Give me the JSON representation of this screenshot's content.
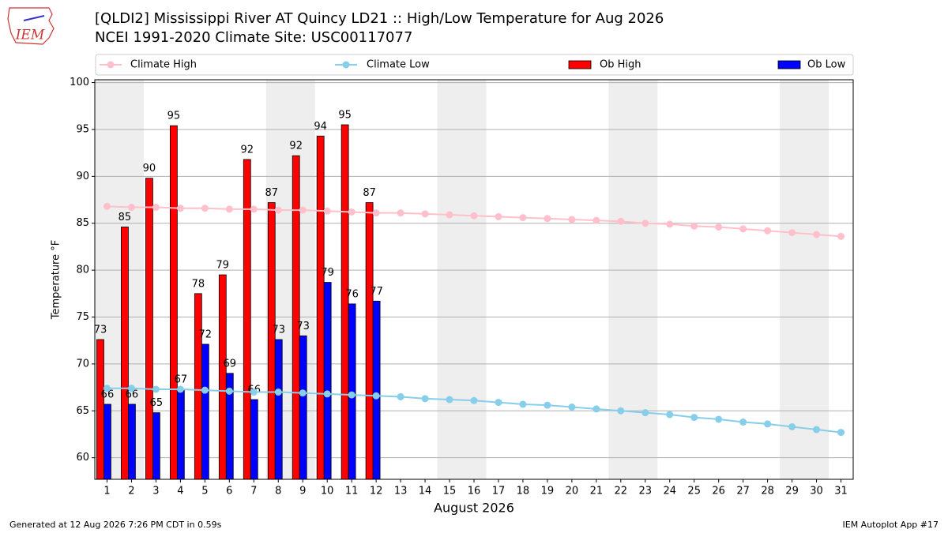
{
  "chart_data": {
    "type": "bar_line",
    "title": "[QLDI2] Mississippi River  AT Quincy LD21 :: High/Low Temperature for Aug 2026",
    "subtitle": "NCEI 1991-2020 Climate Site: USC00117077",
    "logo_text": "IEM",
    "ylabel": "Temperature °F",
    "xlabel": "August 2026",
    "footer_left": "Generated at 12 Aug 2026 7:26 PM CDT in 0.59s",
    "footer_right": "IEM Autoplot App #17",
    "x": [
      1,
      2,
      3,
      4,
      5,
      6,
      7,
      8,
      9,
      10,
      11,
      12,
      13,
      14,
      15,
      16,
      17,
      18,
      19,
      20,
      21,
      22,
      23,
      24,
      25,
      26,
      27,
      28,
      29,
      30,
      31
    ],
    "xlim": [
      0.5,
      31.5
    ],
    "xticks": [
      1,
      2,
      3,
      4,
      5,
      6,
      7,
      8,
      9,
      10,
      11,
      12,
      13,
      14,
      15,
      16,
      17,
      18,
      19,
      20,
      21,
      22,
      23,
      24,
      25,
      26,
      27,
      28,
      29,
      30,
      31
    ],
    "ylim": [
      57.7,
      100.3
    ],
    "yticks": [
      60,
      65,
      70,
      75,
      80,
      85,
      90,
      95,
      100
    ],
    "grid": true,
    "shaded_spans": [
      [
        0.5,
        2.5
      ],
      [
        7.5,
        9.5
      ],
      [
        14.5,
        16.5
      ],
      [
        21.5,
        23.5
      ],
      [
        28.5,
        30.5
      ]
    ],
    "shade_color": "#eeeeee",
    "series": [
      {
        "name": "Climate High",
        "kind": "line",
        "color": "#ffc0cb",
        "values": [
          86.8,
          86.7,
          86.7,
          86.6,
          86.6,
          86.5,
          86.5,
          86.4,
          86.4,
          86.3,
          86.2,
          86.1,
          86.1,
          86.0,
          85.9,
          85.8,
          85.7,
          85.6,
          85.5,
          85.4,
          85.3,
          85.2,
          85.0,
          84.9,
          84.7,
          84.6,
          84.4,
          84.2,
          84.0,
          83.8,
          83.6
        ]
      },
      {
        "name": "Climate Low",
        "kind": "line",
        "color": "#87ceeb",
        "values": [
          67.4,
          67.4,
          67.3,
          67.3,
          67.2,
          67.1,
          67.0,
          67.0,
          66.9,
          66.8,
          66.7,
          66.6,
          66.5,
          66.3,
          66.2,
          66.1,
          65.9,
          65.7,
          65.6,
          65.4,
          65.2,
          65.0,
          64.8,
          64.6,
          64.3,
          64.1,
          63.8,
          63.6,
          63.3,
          63.0,
          62.7
        ]
      },
      {
        "name": "Ob High",
        "kind": "bar",
        "color": "#ff0000",
        "values": [
          72.6,
          84.6,
          89.8,
          95.4,
          77.5,
          79.5,
          91.8,
          87.2,
          92.2,
          94.3,
          95.5,
          87.2,
          null,
          null,
          null,
          null,
          null,
          null,
          null,
          null,
          null,
          null,
          null,
          null,
          null,
          null,
          null,
          null,
          null,
          null,
          null
        ],
        "value_labels": [
          "73",
          "85",
          "90",
          "95",
          "78",
          "79",
          "92",
          "87",
          "92",
          "94",
          "95",
          "87",
          null,
          null,
          null,
          null,
          null,
          null,
          null,
          null,
          null,
          null,
          null,
          null,
          null,
          null,
          null,
          null,
          null,
          null,
          null
        ]
      },
      {
        "name": "Ob Low",
        "kind": "bar",
        "color": "#0000ff",
        "values": [
          65.7,
          65.7,
          64.8,
          67.3,
          72.1,
          69.0,
          66.2,
          72.6,
          73.0,
          78.7,
          76.4,
          76.7,
          null,
          null,
          null,
          null,
          null,
          null,
          null,
          null,
          null,
          null,
          null,
          null,
          null,
          null,
          null,
          null,
          null,
          null,
          null
        ],
        "value_labels": [
          "66",
          "66",
          "65",
          "67",
          "72",
          "69",
          "66",
          "73",
          "73",
          "79",
          "76",
          "77",
          null,
          null,
          null,
          null,
          null,
          null,
          null,
          null,
          null,
          null,
          null,
          null,
          null,
          null,
          null,
          null,
          null,
          null,
          null
        ]
      }
    ]
  }
}
